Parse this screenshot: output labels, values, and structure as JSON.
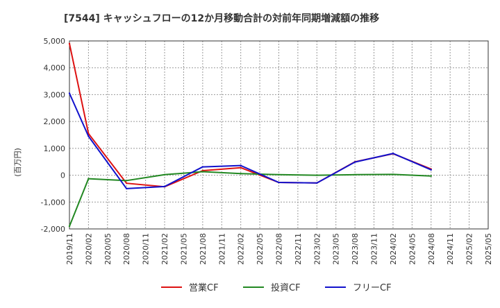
{
  "chart_data": {
    "type": "line",
    "title": "[7544]  キャッシュフローの12か月移動合計の対前年同期増減額の推移",
    "ylabel": "(百万円)",
    "xlabel": "",
    "ylim": [
      -2000,
      5000
    ],
    "yticks": [
      -2000,
      -1000,
      0,
      1000,
      2000,
      3000,
      4000,
      5000
    ],
    "ytick_labels": [
      "-2,000",
      "-1,000",
      "0",
      "1,000",
      "2,000",
      "3,000",
      "4,000",
      "5,000"
    ],
    "categories": [
      "2019/11",
      "2020/02",
      "2020/05",
      "2020/08",
      "2020/11",
      "2021/02",
      "2021/05",
      "2021/08",
      "2021/11",
      "2022/02",
      "2022/05",
      "2022/08",
      "2022/11",
      "2023/02",
      "2023/05",
      "2023/08",
      "2023/11",
      "2024/02",
      "2024/05",
      "2024/08",
      "2024/11",
      "2025/02",
      "2025/05"
    ],
    "grid": true,
    "legend_position": "bottom",
    "series": [
      {
        "name": "営業CF",
        "color": "#dd1111",
        "values": [
          4900,
          1550,
          null,
          -300,
          null,
          -430,
          null,
          170,
          null,
          280,
          null,
          -270,
          null,
          -290,
          null,
          500,
          null,
          800,
          null,
          230,
          null,
          null,
          null
        ]
      },
      {
        "name": "投資CF",
        "color": "#228822",
        "values": [
          -1900,
          -130,
          null,
          -200,
          null,
          20,
          null,
          130,
          null,
          60,
          null,
          20,
          null,
          0,
          null,
          20,
          null,
          30,
          null,
          -30,
          null,
          null,
          null
        ]
      },
      {
        "name": "フリーCF",
        "color": "#1111cc",
        "values": [
          3050,
          1450,
          null,
          -500,
          null,
          -420,
          null,
          310,
          null,
          360,
          null,
          -270,
          null,
          -290,
          null,
          490,
          null,
          810,
          null,
          200,
          null,
          null,
          null
        ]
      }
    ]
  }
}
